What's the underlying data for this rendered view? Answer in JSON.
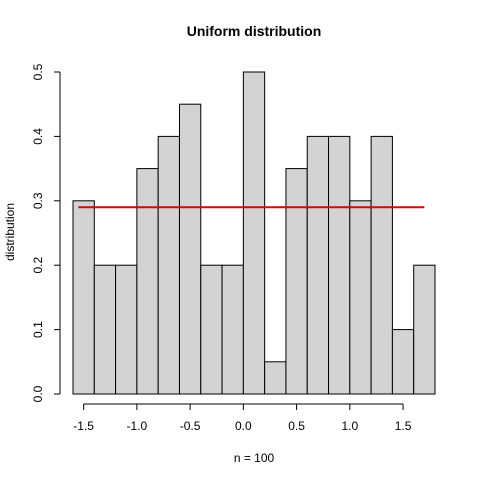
{
  "chart_data": {
    "type": "bar",
    "title": "Uniform distribution",
    "xlabel": "n = 100",
    "ylabel": "distribution",
    "bin_width": 0.2,
    "bins": [
      {
        "x0": -1.6,
        "x1": -1.4,
        "value": 0.3
      },
      {
        "x0": -1.4,
        "x1": -1.2,
        "value": 0.2
      },
      {
        "x0": -1.2,
        "x1": -1.0,
        "value": 0.2
      },
      {
        "x0": -1.0,
        "x1": -0.8,
        "value": 0.35
      },
      {
        "x0": -0.8,
        "x1": -0.6,
        "value": 0.4
      },
      {
        "x0": -0.6,
        "x1": -0.4,
        "value": 0.45
      },
      {
        "x0": -0.4,
        "x1": -0.2,
        "value": 0.2
      },
      {
        "x0": -0.2,
        "x1": 0.0,
        "value": 0.2
      },
      {
        "x0": 0.0,
        "x1": 0.2,
        "value": 0.5
      },
      {
        "x0": 0.2,
        "x1": 0.4,
        "value": 0.05
      },
      {
        "x0": 0.4,
        "x1": 0.6,
        "value": 0.35
      },
      {
        "x0": 0.6,
        "x1": 0.8,
        "value": 0.4
      },
      {
        "x0": 0.8,
        "x1": 1.0,
        "value": 0.4
      },
      {
        "x0": 1.0,
        "x1": 1.2,
        "value": 0.3
      },
      {
        "x0": 1.2,
        "x1": 1.4,
        "value": 0.4
      },
      {
        "x0": 1.4,
        "x1": 1.6,
        "value": 0.1
      },
      {
        "x0": 1.6,
        "x1": 1.8,
        "value": 0.2
      }
    ],
    "reference_line": {
      "x0": -1.55,
      "x1": 1.7,
      "y": 0.29,
      "color": "#e00000"
    },
    "xlim": [
      -1.6,
      1.8
    ],
    "ylim": [
      0,
      0.5
    ],
    "xticks": [
      -1.5,
      -1.0,
      -0.5,
      0.0,
      0.5,
      1.0,
      1.5
    ],
    "xtick_labels": [
      "-1.5",
      "-1.0",
      "-0.5",
      "0.0",
      "0.5",
      "1.0",
      "1.5"
    ],
    "yticks": [
      0.0,
      0.1,
      0.2,
      0.3,
      0.4,
      0.5
    ],
    "ytick_labels": [
      "0.0",
      "0.1",
      "0.2",
      "0.3",
      "0.4",
      "0.5"
    ],
    "bar_fill": "#d3d3d3",
    "bar_stroke": "#000000",
    "grid": false,
    "legend": "none"
  }
}
